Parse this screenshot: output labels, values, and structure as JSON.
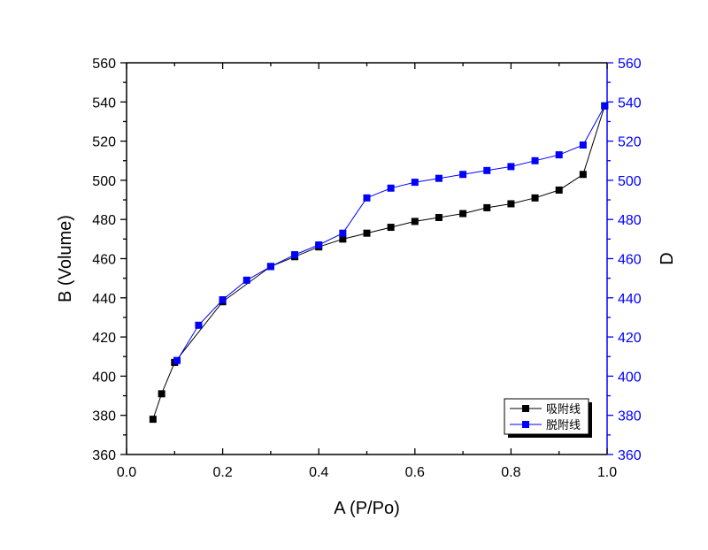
{
  "chart_data": {
    "type": "line",
    "xlabel": "A (P/Po)",
    "ylabel_left": "B (Volume)",
    "ylabel_right": "D",
    "xlim": [
      0.0,
      1.0
    ],
    "ylim": [
      360,
      560
    ],
    "xticks": [
      0.0,
      0.2,
      0.4,
      0.6,
      0.8,
      1.0
    ],
    "xtick_labels": [
      "0.0",
      "0.2",
      "0.4",
      "0.6",
      "0.8",
      "1.0"
    ],
    "yticks": [
      360,
      380,
      400,
      420,
      440,
      460,
      480,
      500,
      520,
      540,
      560
    ],
    "ytick_labels": [
      "360",
      "380",
      "400",
      "420",
      "440",
      "460",
      "480",
      "500",
      "520",
      "540",
      "560"
    ],
    "grid": false,
    "legend_position": "bottom-right",
    "colors": {
      "adsorption": "#000000",
      "desorption": "#0000ff",
      "right_axis": "#0000ff"
    },
    "series": [
      {
        "name": "吸附线",
        "color": "#000000",
        "marker": "square",
        "x": [
          0.055,
          0.073,
          0.1,
          0.2,
          0.3,
          0.35,
          0.4,
          0.45,
          0.55,
          0.5,
          0.6,
          0.65,
          0.7,
          0.75,
          0.8,
          0.85,
          0.9,
          0.95,
          0.995
        ],
        "y": [
          378,
          391,
          407,
          438,
          456,
          461,
          466,
          470,
          476,
          473,
          479,
          481,
          483,
          486,
          488,
          491,
          495,
          503,
          538
        ]
      },
      {
        "name": "脱附线",
        "color": "#0000ff",
        "marker": "square",
        "x": [
          0.995,
          0.95,
          0.9,
          0.85,
          0.8,
          0.75,
          0.7,
          0.65,
          0.6,
          0.55,
          0.5,
          0.45,
          0.4,
          0.35,
          0.3,
          0.25,
          0.2,
          0.15,
          0.105
        ],
        "y": [
          538,
          518,
          513,
          510,
          507,
          505,
          503,
          501,
          499,
          496,
          491,
          473,
          467,
          462,
          456,
          449,
          439,
          426,
          408
        ]
      }
    ]
  }
}
